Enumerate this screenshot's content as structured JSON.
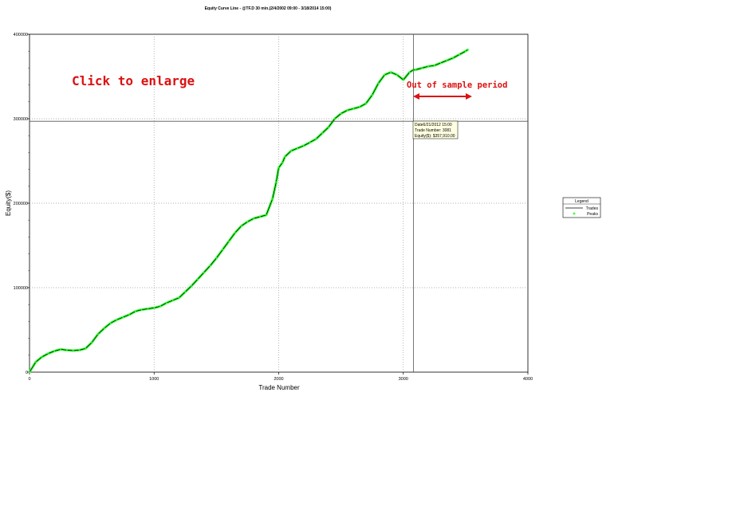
{
  "chart_data": {
    "type": "line",
    "title": "Equity Curve Line - @TF.D 30 min.(2/4/2002 09:00 - 3/18/2014 15:00)",
    "xlabel": "Trade Number",
    "ylabel": "Equity($)",
    "xlim": [
      0,
      4000
    ],
    "ylim": [
      0,
      400000
    ],
    "x_ticks": [
      "0",
      "1000",
      "2000",
      "3000",
      "4000"
    ],
    "y_ticks": [
      "0",
      "100000",
      "200000",
      "300000",
      "400000"
    ],
    "grid": true,
    "legend_position": "right",
    "series": [
      {
        "name": "Trades",
        "color": "#000000",
        "x": [
          0,
          50,
          100,
          150,
          200,
          250,
          300,
          350,
          400,
          450,
          500,
          550,
          600,
          650,
          700,
          750,
          800,
          850,
          900,
          950,
          1000,
          1050,
          1100,
          1150,
          1200,
          1250,
          1300,
          1350,
          1400,
          1450,
          1500,
          1550,
          1600,
          1650,
          1700,
          1750,
          1800,
          1850,
          1900,
          1950,
          1980,
          2000,
          2030,
          2050,
          2100,
          2150,
          2200,
          2250,
          2300,
          2350,
          2400,
          2450,
          2500,
          2550,
          2600,
          2650,
          2700,
          2750,
          2800,
          2850,
          2900,
          2950,
          3000,
          3050,
          3081,
          3100,
          3150,
          3200,
          3250,
          3300,
          3350,
          3400,
          3450,
          3500,
          3520
        ],
        "y": [
          0,
          12000,
          18000,
          22000,
          25000,
          27000,
          26000,
          25500,
          26000,
          28000,
          35000,
          45000,
          52000,
          58000,
          62000,
          65000,
          68000,
          72000,
          74000,
          75000,
          76000,
          78000,
          82000,
          85000,
          88000,
          95000,
          102000,
          110000,
          118000,
          126000,
          135000,
          145000,
          155000,
          165000,
          173000,
          178000,
          182000,
          184000,
          186000,
          205000,
          225000,
          242000,
          248000,
          255000,
          262000,
          265000,
          268000,
          272000,
          276000,
          283000,
          290000,
          300000,
          306000,
          310000,
          312000,
          314000,
          318000,
          328000,
          342000,
          352000,
          355000,
          352000,
          346000,
          355000,
          357910,
          358000,
          360000,
          362000,
          363000,
          366000,
          369000,
          372000,
          376000,
          380000,
          382000
        ]
      },
      {
        "name": "Peaks",
        "color": "#33ff33",
        "marker": "point"
      }
    ],
    "annotations": {
      "click_label": "Click to enlarge",
      "oos_label": "Out of sample period",
      "cursor_x": 3081,
      "cursor_y": 297000,
      "tooltip_lines": [
        "Date6/21/2012 15:00",
        "Trade Number: 3081",
        "Equity($): $357,910.00"
      ]
    },
    "legend_title": "Legend"
  }
}
